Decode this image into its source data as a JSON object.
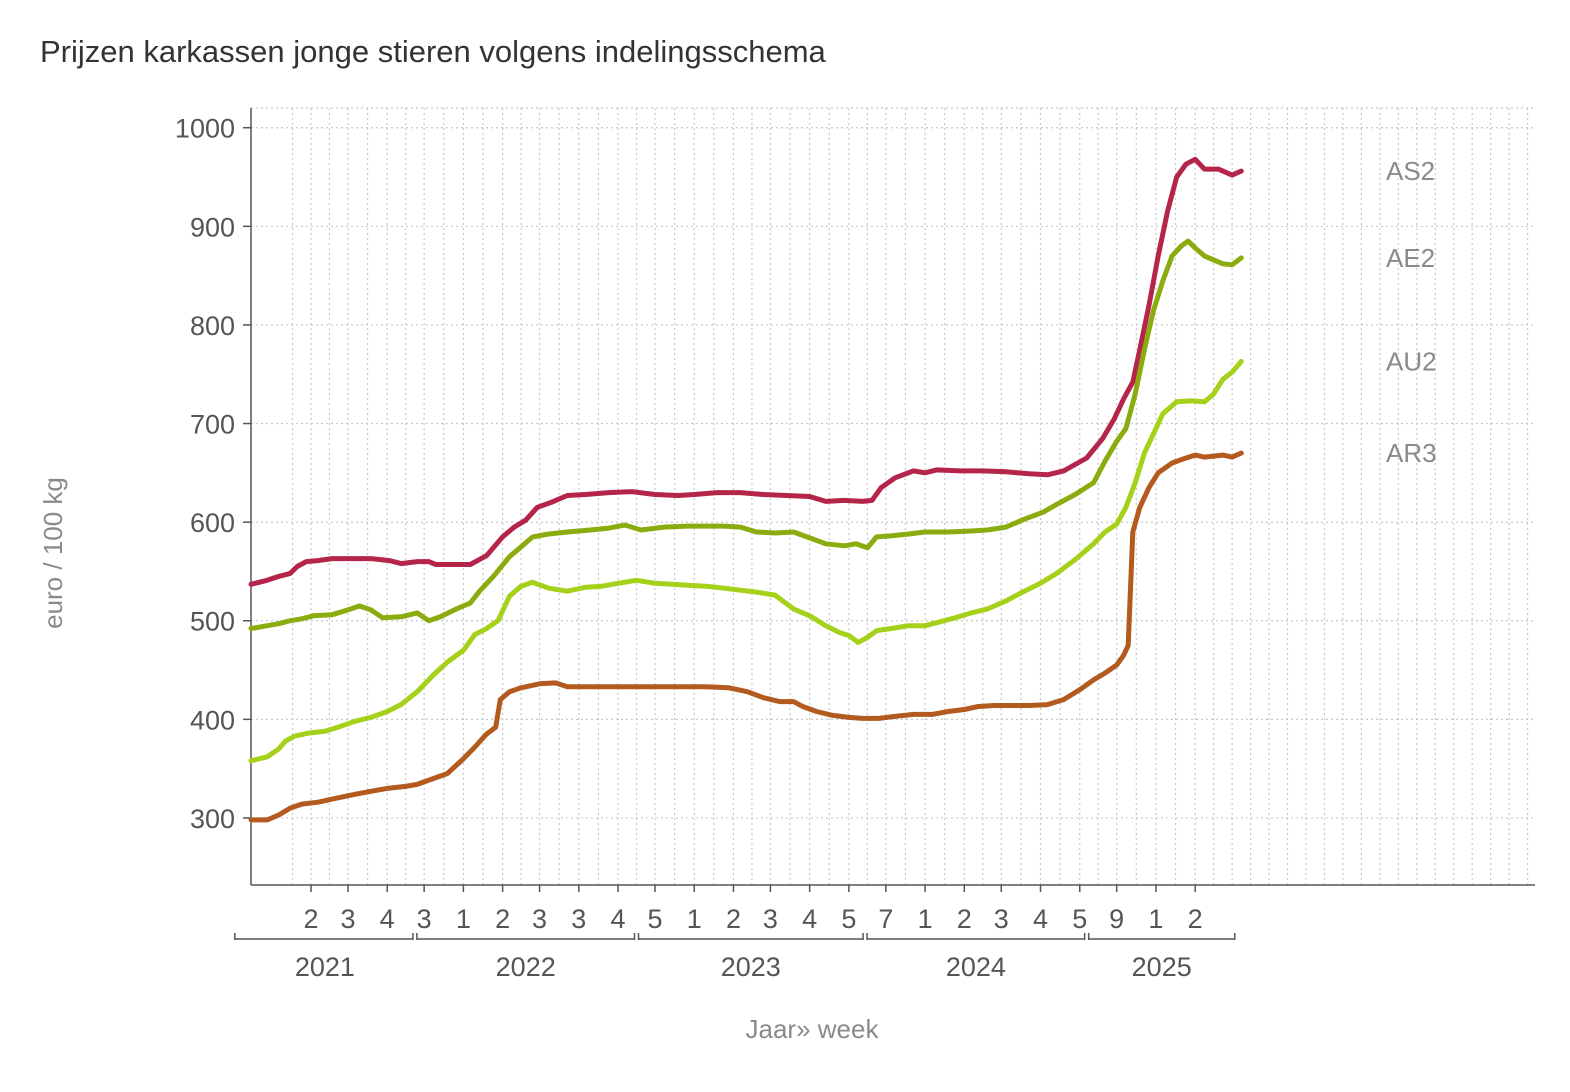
{
  "chart_data": {
    "type": "line",
    "title": "Prijzen karkassen jonge stieren volgens indelingsschema",
    "ylabel": "euro / 100 kg",
    "xlabel": "Jaar» week",
    "ylim": [
      232,
      1020
    ],
    "yticks": [
      300,
      400,
      500,
      600,
      700,
      800,
      900,
      1000
    ],
    "grid": true,
    "x_range": [
      2020.93,
      2025.76
    ],
    "week_ticks": [
      {
        "label": "2",
        "x": 2021.19
      },
      {
        "label": "3",
        "x": 2021.35
      },
      {
        "label": "4",
        "x": 2021.52
      },
      {
        "label": "3",
        "x": 2021.68
      },
      {
        "label": "1",
        "x": 2021.85
      },
      {
        "label": "2",
        "x": 2022.02
      },
      {
        "label": "3",
        "x": 2022.18
      },
      {
        "label": "3",
        "x": 2022.35
      },
      {
        "label": "4",
        "x": 2022.52
      },
      {
        "label": "5",
        "x": 2022.68
      },
      {
        "label": "1",
        "x": 2022.85
      },
      {
        "label": "2",
        "x": 2023.02
      },
      {
        "label": "3",
        "x": 2023.18
      },
      {
        "label": "4",
        "x": 2023.35
      },
      {
        "label": "5",
        "x": 2023.52
      },
      {
        "label": "7",
        "x": 2023.68
      },
      {
        "label": "1",
        "x": 2023.85
      },
      {
        "label": "2",
        "x": 2024.02
      },
      {
        "label": "3",
        "x": 2024.18
      },
      {
        "label": "4",
        "x": 2024.35
      },
      {
        "label": "5",
        "x": 2024.52
      },
      {
        "label": "9",
        "x": 2024.68
      },
      {
        "label": "1",
        "x": 2024.85
      },
      {
        "label": "2",
        "x": 2025.02
      }
    ],
    "year_groups": [
      {
        "label": "2021",
        "start": 2020.86,
        "end": 2021.64
      },
      {
        "label": "2022",
        "start": 2021.64,
        "end": 2022.6
      },
      {
        "label": "2023",
        "start": 2022.6,
        "end": 2023.59
      },
      {
        "label": "2024",
        "start": 2023.59,
        "end": 2024.55
      },
      {
        "label": "2025",
        "start": 2024.55,
        "end": 2025.2
      }
    ],
    "series": [
      {
        "name": "AS2",
        "color": "#b5254a",
        "points": [
          [
            2020.93,
            537
          ],
          [
            2021.0,
            541
          ],
          [
            2021.05,
            545
          ],
          [
            2021.1,
            548
          ],
          [
            2021.13,
            555
          ],
          [
            2021.17,
            560
          ],
          [
            2021.22,
            561
          ],
          [
            2021.28,
            563
          ],
          [
            2021.35,
            563
          ],
          [
            2021.45,
            563
          ],
          [
            2021.53,
            561
          ],
          [
            2021.58,
            558
          ],
          [
            2021.65,
            560
          ],
          [
            2021.7,
            560
          ],
          [
            2021.73,
            557
          ],
          [
            2021.8,
            557
          ],
          [
            2021.88,
            557
          ],
          [
            2021.95,
            566
          ],
          [
            2022.02,
            585
          ],
          [
            2022.07,
            595
          ],
          [
            2022.12,
            602
          ],
          [
            2022.17,
            615
          ],
          [
            2022.23,
            620
          ],
          [
            2022.3,
            627
          ],
          [
            2022.38,
            628
          ],
          [
            2022.48,
            630
          ],
          [
            2022.58,
            631
          ],
          [
            2022.68,
            628
          ],
          [
            2022.78,
            627
          ],
          [
            2022.85,
            628
          ],
          [
            2022.95,
            630
          ],
          [
            2023.05,
            630
          ],
          [
            2023.15,
            628
          ],
          [
            2023.25,
            627
          ],
          [
            2023.35,
            626
          ],
          [
            2023.42,
            621
          ],
          [
            2023.5,
            622
          ],
          [
            2023.58,
            621
          ],
          [
            2023.62,
            622
          ],
          [
            2023.66,
            635
          ],
          [
            2023.72,
            645
          ],
          [
            2023.8,
            652
          ],
          [
            2023.85,
            650
          ],
          [
            2023.9,
            653
          ],
          [
            2024.0,
            652
          ],
          [
            2024.1,
            652
          ],
          [
            2024.2,
            651
          ],
          [
            2024.3,
            649
          ],
          [
            2024.38,
            648
          ],
          [
            2024.45,
            652
          ],
          [
            2024.55,
            665
          ],
          [
            2024.62,
            685
          ],
          [
            2024.67,
            705
          ],
          [
            2024.71,
            725
          ],
          [
            2024.75,
            742
          ],
          [
            2024.78,
            775
          ],
          [
            2024.82,
            820
          ],
          [
            2024.86,
            870
          ],
          [
            2024.9,
            915
          ],
          [
            2024.94,
            950
          ],
          [
            2024.98,
            963
          ],
          [
            2025.02,
            968
          ],
          [
            2025.06,
            958
          ],
          [
            2025.12,
            958
          ],
          [
            2025.18,
            952
          ],
          [
            2025.22,
            956
          ]
        ]
      },
      {
        "name": "AE2",
        "color": "#8aac0e",
        "points": [
          [
            2020.93,
            492
          ],
          [
            2021.0,
            495
          ],
          [
            2021.05,
            497
          ],
          [
            2021.1,
            500
          ],
          [
            2021.15,
            502
          ],
          [
            2021.2,
            505
          ],
          [
            2021.28,
            506
          ],
          [
            2021.35,
            511
          ],
          [
            2021.4,
            515
          ],
          [
            2021.45,
            511
          ],
          [
            2021.5,
            503
          ],
          [
            2021.58,
            504
          ],
          [
            2021.65,
            508
          ],
          [
            2021.7,
            500
          ],
          [
            2021.75,
            504
          ],
          [
            2021.82,
            512
          ],
          [
            2021.88,
            518
          ],
          [
            2021.92,
            530
          ],
          [
            2021.98,
            545
          ],
          [
            2022.05,
            565
          ],
          [
            2022.1,
            575
          ],
          [
            2022.15,
            585
          ],
          [
            2022.22,
            588
          ],
          [
            2022.3,
            590
          ],
          [
            2022.4,
            592
          ],
          [
            2022.48,
            594
          ],
          [
            2022.55,
            597
          ],
          [
            2022.62,
            592
          ],
          [
            2022.72,
            595
          ],
          [
            2022.82,
            596
          ],
          [
            2022.9,
            596
          ],
          [
            2022.98,
            596
          ],
          [
            2023.05,
            595
          ],
          [
            2023.12,
            590
          ],
          [
            2023.2,
            589
          ],
          [
            2023.28,
            590
          ],
          [
            2023.35,
            584
          ],
          [
            2023.42,
            578
          ],
          [
            2023.5,
            576
          ],
          [
            2023.55,
            578
          ],
          [
            2023.6,
            574
          ],
          [
            2023.64,
            585
          ],
          [
            2023.7,
            586
          ],
          [
            2023.78,
            588
          ],
          [
            2023.85,
            590
          ],
          [
            2023.95,
            590
          ],
          [
            2024.05,
            591
          ],
          [
            2024.12,
            592
          ],
          [
            2024.2,
            595
          ],
          [
            2024.28,
            603
          ],
          [
            2024.36,
            610
          ],
          [
            2024.42,
            618
          ],
          [
            2024.5,
            628
          ],
          [
            2024.58,
            640
          ],
          [
            2024.63,
            662
          ],
          [
            2024.68,
            682
          ],
          [
            2024.72,
            695
          ],
          [
            2024.76,
            730
          ],
          [
            2024.8,
            775
          ],
          [
            2024.84,
            815
          ],
          [
            2024.88,
            845
          ],
          [
            2024.92,
            870
          ],
          [
            2024.96,
            880
          ],
          [
            2024.99,
            885
          ],
          [
            2025.02,
            878
          ],
          [
            2025.06,
            870
          ],
          [
            2025.1,
            866
          ],
          [
            2025.14,
            862
          ],
          [
            2025.18,
            861
          ],
          [
            2025.22,
            868
          ]
        ]
      },
      {
        "name": "AU2",
        "color": "#a5d11a",
        "points": [
          [
            2020.93,
            358
          ],
          [
            2021.0,
            362
          ],
          [
            2021.05,
            370
          ],
          [
            2021.08,
            378
          ],
          [
            2021.12,
            383
          ],
          [
            2021.18,
            386
          ],
          [
            2021.25,
            388
          ],
          [
            2021.32,
            393
          ],
          [
            2021.38,
            398
          ],
          [
            2021.45,
            402
          ],
          [
            2021.52,
            408
          ],
          [
            2021.58,
            415
          ],
          [
            2021.65,
            428
          ],
          [
            2021.72,
            445
          ],
          [
            2021.78,
            458
          ],
          [
            2021.85,
            470
          ],
          [
            2021.9,
            486
          ],
          [
            2021.95,
            492
          ],
          [
            2022.0,
            500
          ],
          [
            2022.05,
            525
          ],
          [
            2022.1,
            535
          ],
          [
            2022.15,
            539
          ],
          [
            2022.22,
            533
          ],
          [
            2022.3,
            530
          ],
          [
            2022.38,
            534
          ],
          [
            2022.45,
            535
          ],
          [
            2022.52,
            538
          ],
          [
            2022.6,
            541
          ],
          [
            2022.68,
            538
          ],
          [
            2022.75,
            537
          ],
          [
            2022.82,
            536
          ],
          [
            2022.9,
            535
          ],
          [
            2022.98,
            533
          ],
          [
            2023.05,
            531
          ],
          [
            2023.12,
            529
          ],
          [
            2023.2,
            526
          ],
          [
            2023.28,
            512
          ],
          [
            2023.35,
            505
          ],
          [
            2023.42,
            495
          ],
          [
            2023.48,
            488
          ],
          [
            2023.52,
            485
          ],
          [
            2023.56,
            478
          ],
          [
            2023.6,
            483
          ],
          [
            2023.64,
            490
          ],
          [
            2023.7,
            492
          ],
          [
            2023.78,
            495
          ],
          [
            2023.85,
            495
          ],
          [
            2023.9,
            498
          ],
          [
            2023.98,
            503
          ],
          [
            2024.05,
            508
          ],
          [
            2024.12,
            512
          ],
          [
            2024.2,
            520
          ],
          [
            2024.28,
            530
          ],
          [
            2024.35,
            538
          ],
          [
            2024.42,
            548
          ],
          [
            2024.5,
            562
          ],
          [
            2024.58,
            578
          ],
          [
            2024.63,
            590
          ],
          [
            2024.68,
            598
          ],
          [
            2024.72,
            615
          ],
          [
            2024.76,
            640
          ],
          [
            2024.8,
            670
          ],
          [
            2024.84,
            690
          ],
          [
            2024.88,
            710
          ],
          [
            2024.94,
            722
          ],
          [
            2025.0,
            723
          ],
          [
            2025.06,
            722
          ],
          [
            2025.1,
            730
          ],
          [
            2025.14,
            745
          ],
          [
            2025.18,
            752
          ],
          [
            2025.22,
            763
          ]
        ]
      },
      {
        "name": "AR3",
        "color": "#b35a1f",
        "points": [
          [
            2020.93,
            298
          ],
          [
            2021.0,
            298
          ],
          [
            2021.05,
            303
          ],
          [
            2021.1,
            310
          ],
          [
            2021.15,
            314
          ],
          [
            2021.22,
            316
          ],
          [
            2021.3,
            320
          ],
          [
            2021.38,
            324
          ],
          [
            2021.45,
            327
          ],
          [
            2021.52,
            330
          ],
          [
            2021.6,
            332
          ],
          [
            2021.65,
            334
          ],
          [
            2021.72,
            340
          ],
          [
            2021.78,
            345
          ],
          [
            2021.85,
            360
          ],
          [
            2021.9,
            372
          ],
          [
            2021.95,
            385
          ],
          [
            2021.99,
            392
          ],
          [
            2022.01,
            420
          ],
          [
            2022.05,
            428
          ],
          [
            2022.1,
            432
          ],
          [
            2022.18,
            436
          ],
          [
            2022.25,
            437
          ],
          [
            2022.3,
            433
          ],
          [
            2022.38,
            433
          ],
          [
            2022.45,
            433
          ],
          [
            2022.52,
            433
          ],
          [
            2022.6,
            433
          ],
          [
            2022.7,
            433
          ],
          [
            2022.8,
            433
          ],
          [
            2022.9,
            433
          ],
          [
            2023.0,
            432
          ],
          [
            2023.08,
            428
          ],
          [
            2023.15,
            422
          ],
          [
            2023.22,
            418
          ],
          [
            2023.28,
            418
          ],
          [
            2023.32,
            413
          ],
          [
            2023.38,
            408
          ],
          [
            2023.45,
            404
          ],
          [
            2023.52,
            402
          ],
          [
            2023.58,
            401
          ],
          [
            2023.65,
            401
          ],
          [
            2023.72,
            403
          ],
          [
            2023.8,
            405
          ],
          [
            2023.88,
            405
          ],
          [
            2023.95,
            408
          ],
          [
            2024.02,
            410
          ],
          [
            2024.08,
            413
          ],
          [
            2024.15,
            414
          ],
          [
            2024.22,
            414
          ],
          [
            2024.3,
            414
          ],
          [
            2024.38,
            415
          ],
          [
            2024.45,
            420
          ],
          [
            2024.52,
            430
          ],
          [
            2024.58,
            440
          ],
          [
            2024.63,
            447
          ],
          [
            2024.68,
            455
          ],
          [
            2024.71,
            465
          ],
          [
            2024.73,
            475
          ],
          [
            2024.75,
            590
          ],
          [
            2024.78,
            615
          ],
          [
            2024.82,
            635
          ],
          [
            2024.86,
            650
          ],
          [
            2024.92,
            660
          ],
          [
            2024.98,
            665
          ],
          [
            2025.02,
            668
          ],
          [
            2025.06,
            666
          ],
          [
            2025.1,
            667
          ],
          [
            2025.14,
            668
          ],
          [
            2025.18,
            666
          ],
          [
            2025.22,
            670
          ]
        ]
      }
    ]
  }
}
